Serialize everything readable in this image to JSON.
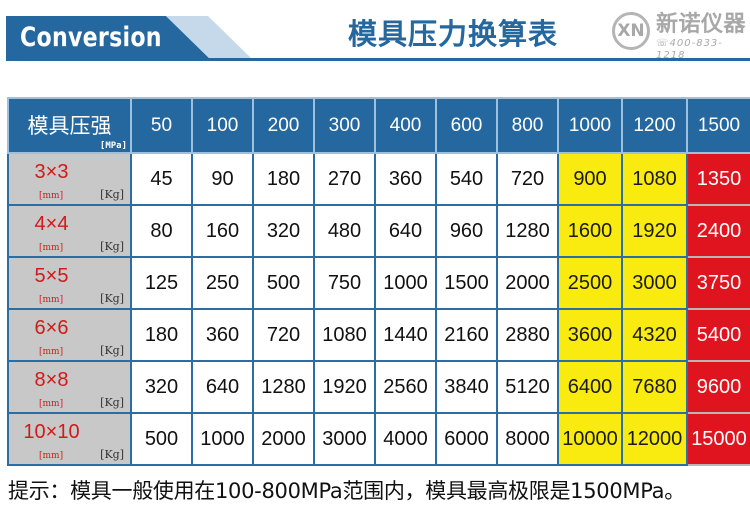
{
  "banner": {
    "english_title": "Conversion",
    "chinese_title": "模具压力换算表"
  },
  "logo": {
    "mark": "XN",
    "name": "新诺仪器",
    "phone": "400-833-1218",
    "icon": "phone-icon"
  },
  "table": {
    "corner": {
      "label": "模具压强",
      "unit": "[MPa]"
    },
    "pressures": [
      "50",
      "100",
      "200",
      "300",
      "400",
      "600",
      "800",
      "1000",
      "1200",
      "1500"
    ],
    "size_unit": "[mm]",
    "force_unit": "[Kg]",
    "highlight": {
      "yellow_columns": [
        "1000",
        "1200"
      ],
      "red_columns": [
        "1500"
      ],
      "yellow": "#f9ea0f",
      "red": "#e0141e",
      "header_blue": "#2568a0"
    },
    "rows": [
      {
        "size": "3×3",
        "values": [
          "45",
          "90",
          "180",
          "270",
          "360",
          "540",
          "720",
          "900",
          "1080",
          "1350"
        ]
      },
      {
        "size": "4×4",
        "values": [
          "80",
          "160",
          "320",
          "480",
          "640",
          "960",
          "1280",
          "1600",
          "1920",
          "2400"
        ]
      },
      {
        "size": "5×5",
        "values": [
          "125",
          "250",
          "500",
          "750",
          "1000",
          "1500",
          "2000",
          "2500",
          "3000",
          "3750"
        ]
      },
      {
        "size": "6×6",
        "values": [
          "180",
          "360",
          "720",
          "1080",
          "1440",
          "2160",
          "2880",
          "3600",
          "4320",
          "5400"
        ]
      },
      {
        "size": "8×8",
        "values": [
          "320",
          "640",
          "1280",
          "1920",
          "2560",
          "3840",
          "5120",
          "6400",
          "7680",
          "9600"
        ]
      },
      {
        "size": "10×10",
        "values": [
          "500",
          "1000",
          "2000",
          "3000",
          "4000",
          "6000",
          "8000",
          "10000",
          "12000",
          "15000"
        ]
      }
    ]
  },
  "note": "提示：模具一般使用在100-800MPa范围内，模具最高极限是1500MPa。"
}
